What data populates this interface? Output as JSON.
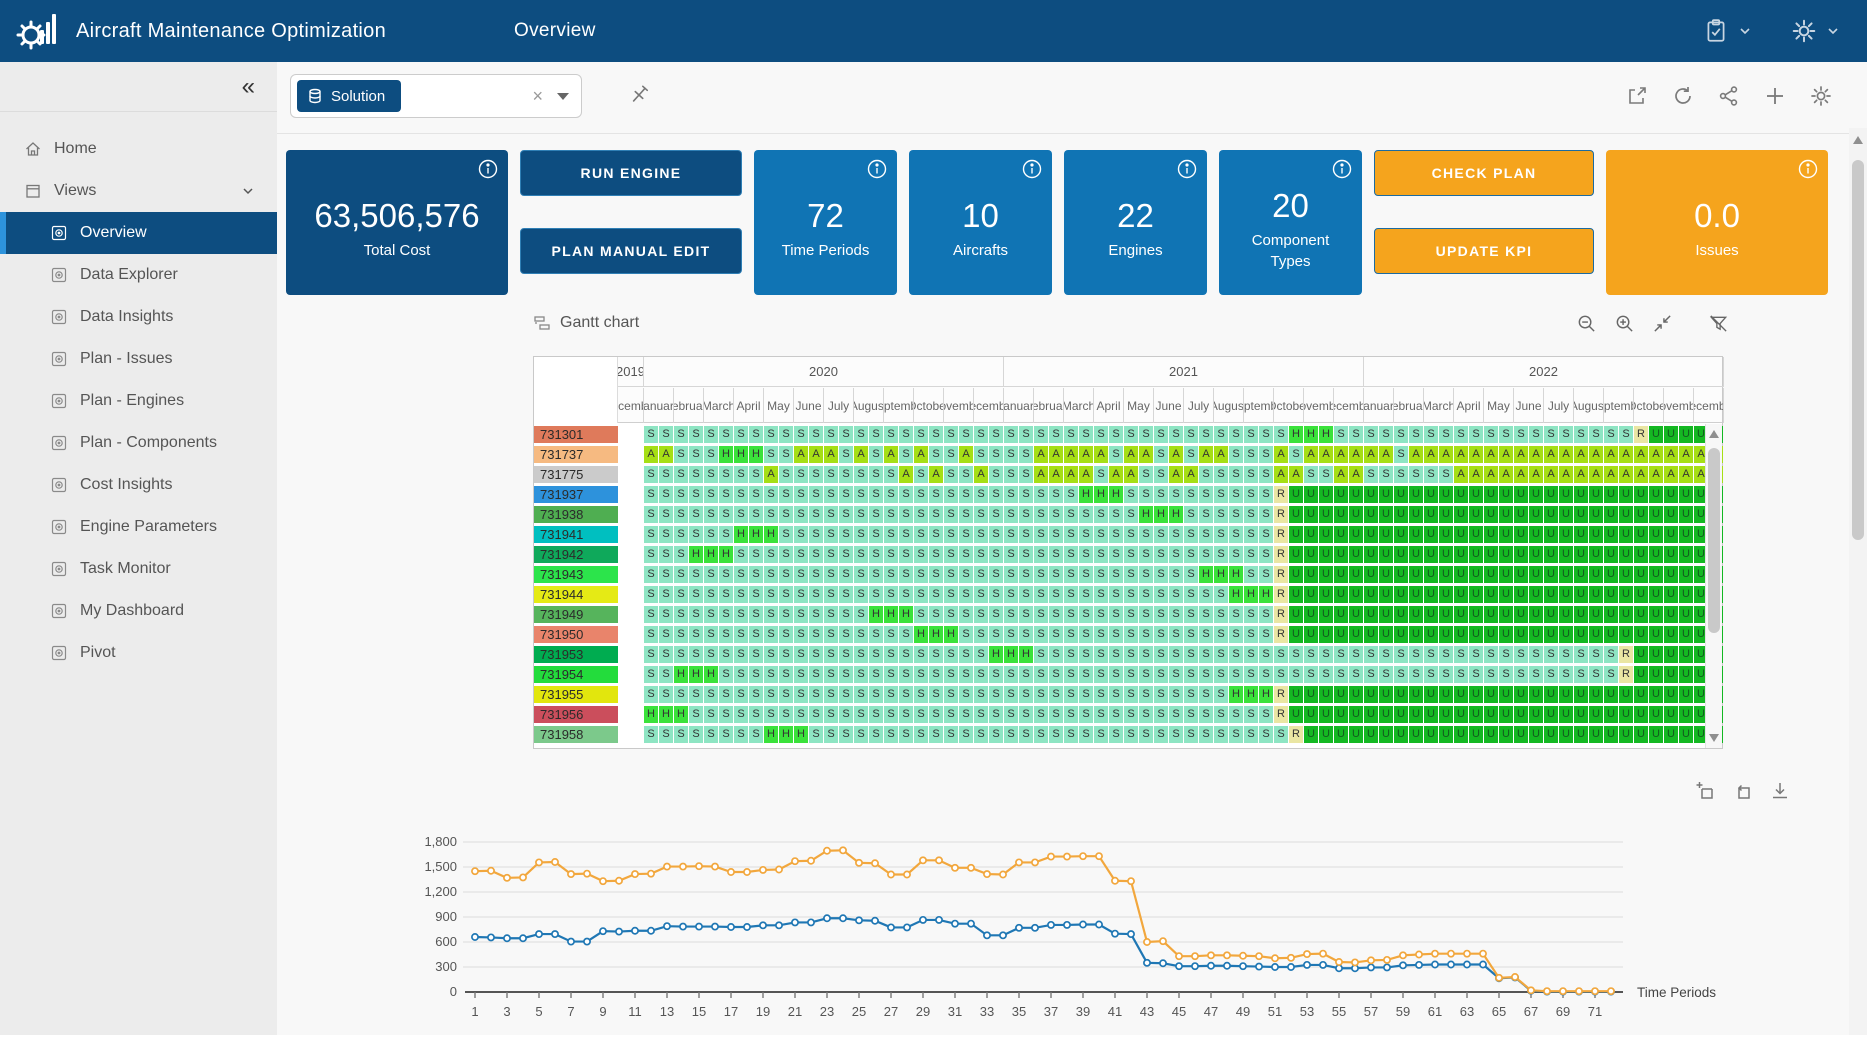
{
  "navbar": {
    "title": "Aircraft Maintenance Optimization",
    "page": "Overview"
  },
  "sidebar": {
    "items": [
      {
        "label": "Home",
        "icon": "home",
        "level": 0
      },
      {
        "label": "Views",
        "icon": "views",
        "level": 0,
        "chevron": true
      },
      {
        "label": "Overview",
        "icon": "view",
        "level": 1,
        "selected": true
      },
      {
        "label": "Data Explorer",
        "icon": "view",
        "level": 1
      },
      {
        "label": "Data Insights",
        "icon": "view",
        "level": 1
      },
      {
        "label": "Plan - Issues",
        "icon": "view",
        "level": 1
      },
      {
        "label": "Plan - Engines",
        "icon": "view",
        "level": 1
      },
      {
        "label": "Plan - Components",
        "icon": "view",
        "level": 1
      },
      {
        "label": "Cost Insights",
        "icon": "view",
        "level": 1
      },
      {
        "label": "Engine Parameters",
        "icon": "view",
        "level": 1
      },
      {
        "label": "Task Monitor",
        "icon": "view",
        "level": 1
      },
      {
        "label": "My Dashboard",
        "icon": "view",
        "level": 1
      },
      {
        "label": "Pivot",
        "icon": "view",
        "level": 1
      }
    ]
  },
  "toolbar": {
    "solution_label": "Solution"
  },
  "kpi": {
    "total": {
      "value": "63,506,576",
      "label": "Total Cost"
    },
    "run_engine_label": "RUN ENGINE",
    "plan_manual_edit_label": "PLAN MANUAL EDIT",
    "cards": [
      {
        "value": "72",
        "label": "Time Periods"
      },
      {
        "value": "10",
        "label": "Aircrafts"
      },
      {
        "value": "22",
        "label": "Engines"
      },
      {
        "value": "20",
        "label": "Component Types"
      }
    ],
    "check_plan_label": "CHECK PLAN",
    "update_kpi_label": "UPDATE KPI",
    "issues": {
      "value": "0.0",
      "label": "Issues"
    }
  },
  "gantt": {
    "title": "Gantt chart",
    "years": [
      {
        "label": "2019",
        "months": 1
      },
      {
        "label": "2020",
        "months": 12
      },
      {
        "label": "2021",
        "months": 12
      },
      {
        "label": "2022",
        "months": 12
      }
    ],
    "months": [
      "December",
      "January",
      "February",
      "March",
      "April",
      "May",
      "June",
      "July",
      "August",
      "September",
      "October",
      "November",
      "December",
      "January",
      "February",
      "March",
      "April",
      "May",
      "June",
      "July",
      "August",
      "September",
      "October",
      "November",
      "December",
      "January",
      "February",
      "March",
      "April",
      "May",
      "June",
      "July",
      "August",
      "September",
      "October",
      "November",
      "December"
    ],
    "cell_colors": {
      "S": "#8EE5C3",
      "A": "#A6DF15",
      "H": "#3BE23B",
      "R": "#EAE6A3",
      "U": "#14B822"
    },
    "cell_text_colors": {
      "U": "#125A1E"
    },
    "rows": [
      {
        "id": "731301",
        "color": "#DF7A5B",
        "cells": [
          "S*43",
          "HHH",
          "S*20",
          "R",
          "U*5"
        ]
      },
      {
        "id": "731737",
        "color": "#F6BA81",
        "cells": [
          "AASSSHHHSS",
          "AAASASASAS",
          "SASSSSAAAA",
          "ASAASASAA",
          "SSSASAAAAAAS",
          "A*21"
        ]
      },
      {
        "id": "731775",
        "color": "#CBCBCB",
        "cells": [
          "SSSSSSSSAS",
          "SSSSSSSASA",
          "SSASSSAAAA",
          "SAASSAASS",
          "SSSAASSAAS",
          "S*5",
          "A*18"
        ]
      },
      {
        "id": "731937",
        "color": "#2D92DC",
        "cells": [
          "S*29",
          "HHH",
          "S*10",
          "R",
          "U*29"
        ]
      },
      {
        "id": "731938",
        "color": "#4FAE51",
        "cells": [
          "S*33",
          "HHH",
          "S*6",
          "R",
          "U*29"
        ]
      },
      {
        "id": "731941",
        "color": "#00BFC0",
        "cells": [
          "S*6",
          "HHH",
          "S*33",
          "R",
          "U*29"
        ]
      },
      {
        "id": "731942",
        "color": "#0FA95B",
        "cells": [
          "S*3",
          "HHH",
          "S*36",
          "R",
          "U*29"
        ]
      },
      {
        "id": "731943",
        "color": "#2CE44B",
        "cells": [
          "S*37",
          "HHH",
          "SS",
          "R",
          "U*29"
        ]
      },
      {
        "id": "731944",
        "color": "#E5EA15",
        "cells": [
          "S*39",
          "HHH",
          "R",
          "U*29"
        ]
      },
      {
        "id": "731949",
        "color": "#56B45C",
        "cells": [
          "S*15",
          "HHH",
          "S*24",
          "R",
          "U*29"
        ]
      },
      {
        "id": "731950",
        "color": "#E9846B",
        "cells": [
          "S*18",
          "HHH",
          "S*21",
          "R",
          "U*29"
        ]
      },
      {
        "id": "731953",
        "color": "#00AC50",
        "cells": [
          "S*23",
          "HHH",
          "S*39",
          "R",
          "U*6"
        ]
      },
      {
        "id": "731954",
        "color": "#23DC3C",
        "cells": [
          "SS",
          "HHH",
          "S*60",
          "R",
          "U*6"
        ]
      },
      {
        "id": "731955",
        "color": "#E2E60D",
        "cells": [
          "S*39",
          "HHH",
          "R",
          "U*29"
        ]
      },
      {
        "id": "731956",
        "color": "#CB4E5C",
        "cells": [
          "HHH",
          "S*39",
          "R",
          "U*29"
        ]
      },
      {
        "id": "731958",
        "color": "#7CC98B",
        "cells": [
          "S*8",
          "HHH",
          "S*32",
          "R",
          "U*28"
        ]
      }
    ]
  },
  "chart_data": {
    "type": "line",
    "xlabel": "Time Periods",
    "ylim": [
      0,
      1800
    ],
    "ytick_labels": [
      "0",
      "300",
      "600",
      "900",
      "1,200",
      "1,500",
      "1,800"
    ],
    "ytick_values": [
      0,
      300,
      600,
      900,
      1200,
      1500,
      1800
    ],
    "xticks": [
      1,
      3,
      5,
      7,
      9,
      11,
      13,
      15,
      17,
      19,
      21,
      23,
      25,
      27,
      29,
      31,
      33,
      35,
      37,
      39,
      41,
      43,
      45,
      47,
      49,
      51,
      53,
      55,
      57,
      59,
      61,
      63,
      65,
      67,
      69,
      71
    ],
    "x_range": [
      1,
      72
    ],
    "grid": true,
    "legend": "none",
    "series": [
      {
        "name": "blue-series",
        "color": "#1F77B4",
        "values": [
          660,
          655,
          645,
          645,
          695,
          695,
          605,
          605,
          730,
          725,
          735,
          735,
          790,
          785,
          785,
          785,
          780,
          780,
          800,
          800,
          835,
          835,
          885,
          885,
          860,
          855,
          775,
          775,
          865,
          865,
          820,
          820,
          680,
          680,
          770,
          770,
          805,
          805,
          810,
          810,
          700,
          695,
          350,
          345,
          310,
          310,
          315,
          315,
          310,
          305,
          300,
          300,
          325,
          325,
          285,
          285,
          295,
          295,
          320,
          325,
          330,
          330,
          330,
          330,
          165,
          175,
          15,
          5,
          5,
          5,
          5,
          5
        ]
      },
      {
        "name": "orange-series",
        "color": "#F2A73D",
        "values": [
          1450,
          1455,
          1370,
          1375,
          1555,
          1560,
          1415,
          1420,
          1330,
          1335,
          1415,
          1420,
          1505,
          1505,
          1510,
          1505,
          1440,
          1440,
          1465,
          1470,
          1570,
          1575,
          1695,
          1700,
          1550,
          1545,
          1410,
          1410,
          1580,
          1580,
          1490,
          1490,
          1415,
          1410,
          1555,
          1555,
          1625,
          1625,
          1630,
          1630,
          1335,
          1330,
          600,
          610,
          430,
          430,
          440,
          440,
          435,
          430,
          405,
          410,
          455,
          460,
          360,
          355,
          380,
          385,
          440,
          450,
          460,
          460,
          460,
          460,
          170,
          180,
          20,
          10,
          10,
          10,
          10,
          10
        ]
      }
    ]
  }
}
